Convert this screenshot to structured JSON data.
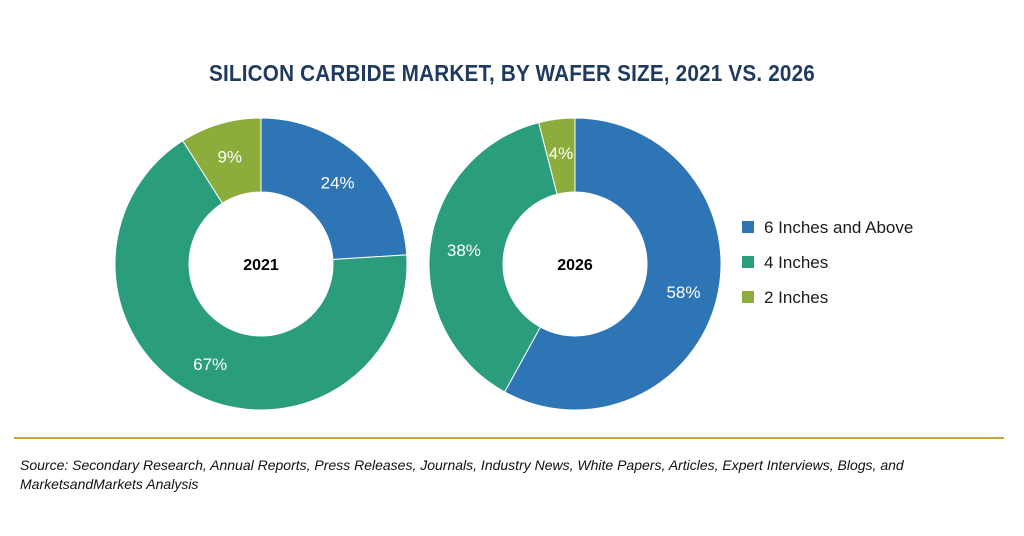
{
  "chart_data": {
    "type": "pie",
    "title": "SILICON CARBIDE MARKET, BY WAFER SIZE, 2021 VS. 2026",
    "series_names": [
      "6 Inches and Above",
      "4 Inches",
      "2 Inches"
    ],
    "colors": [
      "#2e75b6",
      "#2a9d7c",
      "#8cac3c"
    ],
    "charts": [
      {
        "label": "2021",
        "values": [
          24,
          67,
          9
        ],
        "value_labels": [
          "24%",
          "67%",
          "9%"
        ]
      },
      {
        "label": "2026",
        "values": [
          58,
          38,
          4
        ],
        "value_labels": [
          "58%",
          "38%",
          "4%"
        ]
      }
    ],
    "legend_position": "right"
  },
  "source_note": "Source: Secondary Research, Annual Reports, Press Releases, Journals, Industry News, White Papers, Articles, Expert Interviews, Blogs, and MarketsandMarkets Analysis"
}
